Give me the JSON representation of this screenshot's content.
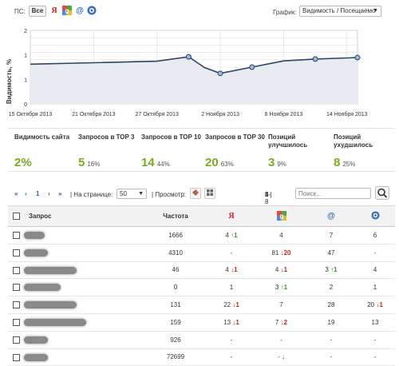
{
  "filter": {
    "ps_label": "ПС:",
    "all_label": "Все"
  },
  "search_engines": [
    {
      "name": "yandex",
      "glyph": "Я",
      "color": "#e02020"
    },
    {
      "name": "google",
      "glyph": "g",
      "color": "#3a7fd8"
    },
    {
      "name": "mail",
      "glyph": "@",
      "color": "#2a6dc4"
    },
    {
      "name": "rambler",
      "glyph": "⊜",
      "color": "#3a6fb8"
    }
  ],
  "graph": {
    "label": "График:",
    "selected": "Видимость / Посещаемо"
  },
  "chart_data": {
    "type": "line",
    "ylabel": "Видимость, %",
    "ylim": [
      0,
      2
    ],
    "yticks": [
      "0",
      "1",
      "1",
      "2"
    ],
    "ytick_values": [
      0,
      0.667,
      1.333,
      2
    ],
    "xticks": [
      "15 Октября 2013",
      "21 Октября 2013",
      "27 Октября 2013",
      "2 Ноября 2013",
      "8 Ноября 2013",
      "14 Ноября 2013"
    ],
    "xtick_days": [
      0,
      6,
      12,
      18,
      24,
      30
    ],
    "series": [
      {
        "name": "",
        "x": [
          0,
          6,
          12,
          15,
          16.5,
          18,
          21,
          24,
          27,
          30,
          31
        ],
        "y": [
          1.08,
          1.12,
          1.16,
          1.28,
          0.99,
          0.83,
          1.0,
          1.17,
          1.22,
          1.25,
          1.26
        ],
        "markers": [
          3,
          5,
          6,
          8,
          10
        ]
      }
    ],
    "grid": true
  },
  "stats": [
    {
      "title": "Видимость сайта",
      "value": "2%",
      "pct": ""
    },
    {
      "title": "Запросов в ТОР 3",
      "value": "5",
      "pct": "16%"
    },
    {
      "title": "Запросов в ТОР 10",
      "value": "14",
      "pct": "44%"
    },
    {
      "title": "Запросов в ТОР 30",
      "value": "20",
      "pct": "63%"
    },
    {
      "title": "Позиций улучшилось",
      "value": "3",
      "pct": "9%"
    },
    {
      "title": "Позиций ухудшилось",
      "value": "8",
      "pct": "25%"
    }
  ],
  "pager": {
    "first": "«",
    "prev": "‹",
    "page": "1",
    "next": "›",
    "last": "»",
    "per_page_label": "| На странице:",
    "per_page": "50",
    "view_label": "| Просмотр:",
    "range_text": "1-8 из",
    "total": "8",
    "search_placeholder": "Поиск..."
  },
  "table": {
    "headers": {
      "query": "Запрос",
      "freq": "Частота"
    },
    "rows": [
      {
        "w": 26,
        "freq": "1666",
        "ya": "4",
        "ya_d": "↑1",
        "ya_dir": "up",
        "g": "4",
        "g_d": "",
        "g_dir": "",
        "m": "7",
        "m_d": "",
        "m_dir": "",
        "r": "6",
        "r_d": "",
        "r_dir": ""
      },
      {
        "w": 30,
        "freq": "4310",
        "ya": "-",
        "ya_d": "",
        "ya_dir": "",
        "g": "81",
        "g_d": "↓20",
        "g_dir": "dn",
        "m": "47",
        "m_d": "",
        "m_dir": "",
        "r": "-",
        "r_d": "",
        "r_dir": ""
      },
      {
        "w": 66,
        "freq": "46",
        "ya": "4",
        "ya_d": "↓1",
        "ya_dir": "dn",
        "g": "4",
        "g_d": "↓1",
        "g_dir": "dn",
        "m": "3",
        "m_d": "↑1",
        "m_dir": "up",
        "r": "4",
        "r_d": "",
        "r_dir": ""
      },
      {
        "w": 46,
        "freq": "0",
        "ya": "1",
        "ya_d": "",
        "ya_dir": "",
        "g": "3",
        "g_d": "↑1",
        "g_dir": "up",
        "m": "2",
        "m_d": "",
        "m_dir": "",
        "r": "1",
        "r_d": "",
        "r_dir": ""
      },
      {
        "w": 66,
        "freq": "131",
        "ya": "22",
        "ya_d": "↓1",
        "ya_dir": "dn",
        "g": "7",
        "g_d": "",
        "g_dir": "",
        "m": "28",
        "m_d": "",
        "m_dir": "",
        "r": "20",
        "r_d": "↓1",
        "r_dir": "dn"
      },
      {
        "w": 78,
        "freq": "159",
        "ya": "13",
        "ya_d": "↓1",
        "ya_dir": "dn",
        "g": "7",
        "g_d": "↓2",
        "g_dir": "dn",
        "m": "19",
        "m_d": "",
        "m_dir": "",
        "r": "13",
        "r_d": "",
        "r_dir": ""
      },
      {
        "w": 30,
        "freq": "926",
        "ya": "-",
        "ya_d": "",
        "ya_dir": "",
        "g": "-",
        "g_d": "",
        "g_dir": "",
        "m": "-",
        "m_d": "",
        "m_dir": "",
        "r": "-",
        "r_d": "",
        "r_dir": ""
      },
      {
        "w": 30,
        "freq": "72699",
        "ya": "-",
        "ya_d": "",
        "ya_dir": "",
        "g": "-",
        "g_d": "↓",
        "g_dir": "dn",
        "m": "-",
        "m_d": "",
        "m_dir": "",
        "r": "-",
        "r_d": "",
        "r_dir": ""
      }
    ]
  }
}
